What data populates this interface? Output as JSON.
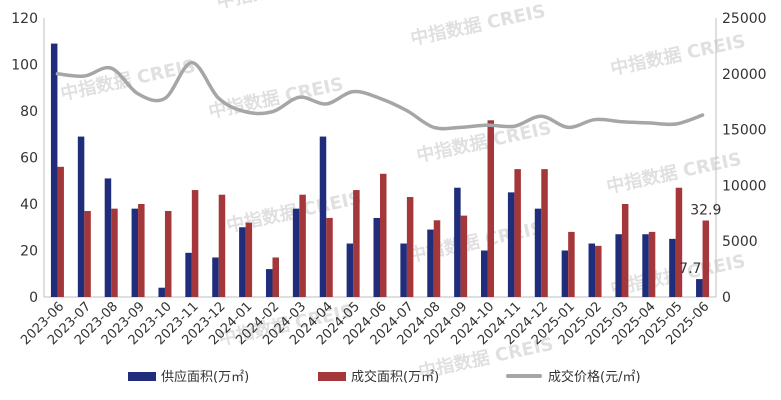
{
  "watermark": "中指数据 CREIS",
  "chart_data": {
    "type": "bar",
    "categories": [
      "2023-06",
      "2023-07",
      "2023-08",
      "2023-09",
      "2023-10",
      "2023-11",
      "2023-12",
      "2024-01",
      "2024-02",
      "2024-03",
      "2024-04",
      "2024-05",
      "2024-06",
      "2024-07",
      "2024-08",
      "2024-09",
      "2024-10",
      "2024-11",
      "2024-12",
      "2025-01",
      "2025-02",
      "2025-03",
      "2025-04",
      "2025-05",
      "2025-06"
    ],
    "series": [
      {
        "name": "供应面积(万㎡)",
        "type": "bar",
        "axis": "left",
        "color": "#1f2d7a",
        "values": [
          109,
          69,
          51,
          38,
          4,
          19,
          17,
          30,
          12,
          38,
          69,
          23,
          34,
          23,
          29,
          47,
          20,
          45,
          38,
          20,
          23,
          27,
          27,
          25,
          7.7
        ]
      },
      {
        "name": "成交面积(万㎡)",
        "type": "bar",
        "axis": "left",
        "color": "#a3373a",
        "values": [
          56,
          37,
          38,
          40,
          37,
          46,
          44,
          32,
          17,
          44,
          34,
          46,
          53,
          43,
          33,
          35,
          76,
          55,
          55,
          28,
          22,
          40,
          28,
          47,
          32.9
        ]
      },
      {
        "name": "成交价格(元/㎡)",
        "type": "line",
        "axis": "right",
        "color": "#a6a6a6",
        "values": [
          20000,
          19800,
          20500,
          18200,
          17800,
          21000,
          17800,
          16600,
          16600,
          17900,
          17300,
          18400,
          17800,
          16700,
          15200,
          15200,
          15400,
          15300,
          16200,
          15200,
          15900,
          15700,
          15600,
          15500,
          16300
        ]
      }
    ],
    "data_labels": [
      {
        "series": 0,
        "index": 24,
        "text": "7.7"
      },
      {
        "series": 1,
        "index": 24,
        "text": "32.9"
      }
    ],
    "ylim_left": [
      0,
      120
    ],
    "yticks_left": [
      0,
      20,
      40,
      60,
      80,
      100,
      120
    ],
    "ylim_right": [
      0,
      25000
    ],
    "yticks_right": [
      0,
      5000,
      10000,
      15000,
      20000,
      25000
    ],
    "grid": false,
    "legend_placement": "bottom"
  }
}
